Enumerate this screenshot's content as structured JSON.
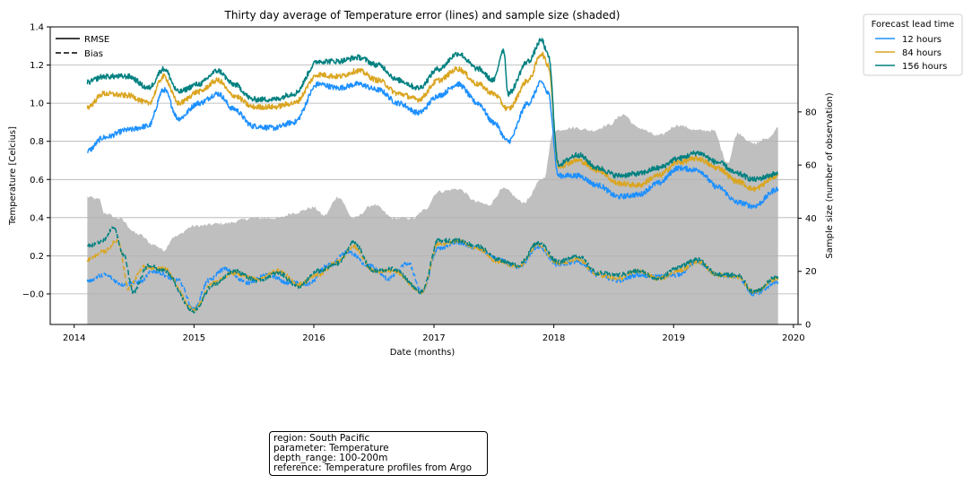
{
  "chart_data": {
    "type": "line",
    "title": "Thirty day average of Temperature error (lines) and sample size (shaded)",
    "xlabel": "Date (months)",
    "ylabel": "Temperature [Celcius]",
    "y2label": "Sample size (number of observation)",
    "xlim": [
      "2013-10-20",
      "2020-01-15"
    ],
    "ylim": [
      -0.16,
      1.4
    ],
    "y2lim": [
      0,
      112
    ],
    "x_ticks": [
      "2014",
      "2015",
      "2016",
      "2017",
      "2018",
      "2019",
      "2020"
    ],
    "y_ticks": [
      "−0.0",
      "0.2",
      "0.4",
      "0.6",
      "0.8",
      "1.0",
      "1.2",
      "1.4"
    ],
    "y_tick_values": [
      0.0,
      0.2,
      0.4,
      0.6,
      0.8,
      1.0,
      1.2,
      1.4
    ],
    "y2_ticks": [
      "0",
      "20",
      "40",
      "60",
      "80"
    ],
    "y2_tick_values": [
      0,
      20,
      40,
      60,
      80
    ],
    "grid": "horizontal",
    "style_legend": [
      {
        "label": "RMSE",
        "dash": "solid"
      },
      {
        "label": "Bias",
        "dash": "dashed"
      }
    ],
    "legend_title": "Forecast lead time",
    "series": [
      {
        "name": "12 hours",
        "color": "#1e90ff",
        "rmse": [
          [
            "2014-02-10",
            0.75
          ],
          [
            "2014-04-01",
            0.82
          ],
          [
            "2014-06-15",
            0.86
          ],
          [
            "2014-08-15",
            0.88
          ],
          [
            "2014-10-01",
            1.07
          ],
          [
            "2014-11-15",
            0.92
          ],
          [
            "2015-01-15",
            1.0
          ],
          [
            "2015-03-15",
            1.05
          ],
          [
            "2015-05-01",
            0.97
          ],
          [
            "2015-07-01",
            0.88
          ],
          [
            "2015-09-01",
            0.87
          ],
          [
            "2015-11-01",
            0.9
          ],
          [
            "2016-01-15",
            1.1
          ],
          [
            "2016-03-15",
            1.08
          ],
          [
            "2016-05-15",
            1.1
          ],
          [
            "2016-07-15",
            1.07
          ],
          [
            "2016-09-15",
            1.0
          ],
          [
            "2016-11-15",
            0.95
          ],
          [
            "2017-01-15",
            1.04
          ],
          [
            "2017-03-15",
            1.1
          ],
          [
            "2017-05-15",
            1.0
          ],
          [
            "2017-07-01",
            0.9
          ],
          [
            "2017-08-15",
            0.8
          ],
          [
            "2017-10-15",
            1.0
          ],
          [
            "2017-11-25",
            1.11
          ],
          [
            "2017-12-15",
            1.05
          ],
          [
            "2018-01-15",
            0.62
          ],
          [
            "2018-03-15",
            0.62
          ],
          [
            "2018-05-15",
            0.57
          ],
          [
            "2018-07-15",
            0.51
          ],
          [
            "2018-09-15",
            0.52
          ],
          [
            "2018-11-15",
            0.58
          ],
          [
            "2019-01-15",
            0.66
          ],
          [
            "2019-03-15",
            0.65
          ],
          [
            "2019-05-15",
            0.56
          ],
          [
            "2019-07-15",
            0.48
          ],
          [
            "2019-09-01",
            0.46
          ],
          [
            "2019-11-15",
            0.55
          ]
        ],
        "bias": [
          [
            "2014-02-10",
            0.07
          ],
          [
            "2014-04-01",
            0.1
          ],
          [
            "2014-06-01",
            0.05
          ],
          [
            "2014-07-15",
            0.06
          ],
          [
            "2014-09-01",
            0.12
          ],
          [
            "2014-11-15",
            0.07
          ],
          [
            "2015-01-01",
            -0.08
          ],
          [
            "2015-02-15",
            0.07
          ],
          [
            "2015-04-01",
            0.13
          ],
          [
            "2015-06-15",
            0.06
          ],
          [
            "2015-08-15",
            0.1
          ],
          [
            "2015-10-15",
            0.06
          ],
          [
            "2015-12-15",
            0.05
          ],
          [
            "2016-02-15",
            0.15
          ],
          [
            "2016-04-15",
            0.22
          ],
          [
            "2016-06-15",
            0.15
          ],
          [
            "2016-08-15",
            0.08
          ],
          [
            "2016-10-15",
            0.16
          ],
          [
            "2016-11-25",
            0.01
          ],
          [
            "2017-01-15",
            0.24
          ],
          [
            "2017-03-15",
            0.27
          ],
          [
            "2017-05-15",
            0.24
          ],
          [
            "2017-07-15",
            0.18
          ],
          [
            "2017-09-15",
            0.14
          ],
          [
            "2017-11-15",
            0.25
          ],
          [
            "2018-01-15",
            0.15
          ],
          [
            "2018-03-15",
            0.17
          ],
          [
            "2018-05-15",
            0.1
          ],
          [
            "2018-07-15",
            0.07
          ],
          [
            "2018-09-15",
            0.1
          ],
          [
            "2018-11-15",
            0.09
          ],
          [
            "2019-01-15",
            0.1
          ],
          [
            "2019-03-15",
            0.17
          ],
          [
            "2019-05-15",
            0.1
          ],
          [
            "2019-07-15",
            0.09
          ],
          [
            "2019-09-01",
            0.0
          ],
          [
            "2019-11-15",
            0.06
          ]
        ]
      },
      {
        "name": "84 hours",
        "color": "#daa520",
        "rmse": [
          [
            "2014-02-10",
            0.98
          ],
          [
            "2014-04-01",
            1.05
          ],
          [
            "2014-06-15",
            1.04
          ],
          [
            "2014-08-15",
            1.0
          ],
          [
            "2014-10-01",
            1.14
          ],
          [
            "2014-11-15",
            1.0
          ],
          [
            "2015-01-15",
            1.06
          ],
          [
            "2015-03-15",
            1.12
          ],
          [
            "2015-05-01",
            1.04
          ],
          [
            "2015-07-01",
            0.98
          ],
          [
            "2015-09-01",
            0.98
          ],
          [
            "2015-11-01",
            1.0
          ],
          [
            "2016-01-15",
            1.15
          ],
          [
            "2016-03-15",
            1.14
          ],
          [
            "2016-05-15",
            1.17
          ],
          [
            "2016-07-15",
            1.12
          ],
          [
            "2016-09-15",
            1.05
          ],
          [
            "2016-11-15",
            1.02
          ],
          [
            "2017-01-15",
            1.12
          ],
          [
            "2017-03-15",
            1.18
          ],
          [
            "2017-05-15",
            1.1
          ],
          [
            "2017-07-01",
            1.05
          ],
          [
            "2017-08-15",
            0.97
          ],
          [
            "2017-10-15",
            1.12
          ],
          [
            "2017-11-25",
            1.26
          ],
          [
            "2017-12-15",
            1.2
          ],
          [
            "2018-01-15",
            0.67
          ],
          [
            "2018-03-15",
            0.7
          ],
          [
            "2018-05-15",
            0.65
          ],
          [
            "2018-07-15",
            0.58
          ],
          [
            "2018-09-15",
            0.57
          ],
          [
            "2018-11-15",
            0.62
          ],
          [
            "2019-01-15",
            0.69
          ],
          [
            "2019-03-15",
            0.71
          ],
          [
            "2019-05-15",
            0.66
          ],
          [
            "2019-07-15",
            0.59
          ],
          [
            "2019-09-01",
            0.55
          ],
          [
            "2019-11-15",
            0.62
          ]
        ],
        "bias": [
          [
            "2014-02-10",
            0.18
          ],
          [
            "2014-04-01",
            0.22
          ],
          [
            "2014-05-15",
            0.28
          ],
          [
            "2014-06-15",
            0.03
          ],
          [
            "2014-08-01",
            0.14
          ],
          [
            "2014-10-01",
            0.13
          ],
          [
            "2015-01-01",
            -0.08
          ],
          [
            "2015-03-01",
            0.06
          ],
          [
            "2015-05-01",
            0.11
          ],
          [
            "2015-07-15",
            0.08
          ],
          [
            "2015-09-15",
            0.12
          ],
          [
            "2015-11-15",
            0.05
          ],
          [
            "2016-01-15",
            0.1
          ],
          [
            "2016-03-15",
            0.17
          ],
          [
            "2016-05-01",
            0.25
          ],
          [
            "2016-07-01",
            0.12
          ],
          [
            "2016-09-01",
            0.12
          ],
          [
            "2016-11-25",
            0.01
          ],
          [
            "2017-01-15",
            0.26
          ],
          [
            "2017-03-15",
            0.28
          ],
          [
            "2017-05-15",
            0.24
          ],
          [
            "2017-07-15",
            0.17
          ],
          [
            "2017-09-15",
            0.14
          ],
          [
            "2017-11-15",
            0.26
          ],
          [
            "2018-01-15",
            0.16
          ],
          [
            "2018-03-15",
            0.18
          ],
          [
            "2018-05-15",
            0.1
          ],
          [
            "2018-07-15",
            0.08
          ],
          [
            "2018-09-15",
            0.12
          ],
          [
            "2018-11-15",
            0.08
          ],
          [
            "2019-01-15",
            0.12
          ],
          [
            "2019-03-15",
            0.17
          ],
          [
            "2019-05-15",
            0.1
          ],
          [
            "2019-07-15",
            0.09
          ],
          [
            "2019-09-01",
            0.01
          ],
          [
            "2019-11-15",
            0.08
          ]
        ]
      },
      {
        "name": "156 hours",
        "color": "#008080",
        "rmse": [
          [
            "2014-02-10",
            1.11
          ],
          [
            "2014-04-01",
            1.14
          ],
          [
            "2014-06-15",
            1.14
          ],
          [
            "2014-08-15",
            1.08
          ],
          [
            "2014-10-01",
            1.18
          ],
          [
            "2014-11-15",
            1.06
          ],
          [
            "2015-01-15",
            1.1
          ],
          [
            "2015-03-15",
            1.17
          ],
          [
            "2015-05-01",
            1.1
          ],
          [
            "2015-07-01",
            1.02
          ],
          [
            "2015-09-01",
            1.02
          ],
          [
            "2015-11-01",
            1.05
          ],
          [
            "2016-01-15",
            1.22
          ],
          [
            "2016-03-15",
            1.22
          ],
          [
            "2016-05-15",
            1.24
          ],
          [
            "2016-07-15",
            1.2
          ],
          [
            "2016-09-15",
            1.12
          ],
          [
            "2016-11-15",
            1.08
          ],
          [
            "2017-01-15",
            1.18
          ],
          [
            "2017-03-15",
            1.26
          ],
          [
            "2017-05-15",
            1.18
          ],
          [
            "2017-07-01",
            1.12
          ],
          [
            "2017-08-01",
            1.28
          ],
          [
            "2017-08-15",
            1.05
          ],
          [
            "2017-10-15",
            1.22
          ],
          [
            "2017-11-25",
            1.33
          ],
          [
            "2017-12-15",
            1.25
          ],
          [
            "2018-01-15",
            0.68
          ],
          [
            "2018-03-15",
            0.73
          ],
          [
            "2018-05-15",
            0.66
          ],
          [
            "2018-07-15",
            0.62
          ],
          [
            "2018-09-15",
            0.63
          ],
          [
            "2018-11-15",
            0.66
          ],
          [
            "2019-01-15",
            0.71
          ],
          [
            "2019-03-15",
            0.74
          ],
          [
            "2019-05-15",
            0.69
          ],
          [
            "2019-07-15",
            0.63
          ],
          [
            "2019-09-01",
            0.6
          ],
          [
            "2019-11-15",
            0.63
          ]
        ],
        "bias": [
          [
            "2014-02-10",
            0.25
          ],
          [
            "2014-04-01",
            0.28
          ],
          [
            "2014-05-01",
            0.35
          ],
          [
            "2014-06-01",
            0.2
          ],
          [
            "2014-07-01",
            0.01
          ],
          [
            "2014-08-15",
            0.15
          ],
          [
            "2014-10-01",
            0.12
          ],
          [
            "2015-01-01",
            -0.09
          ],
          [
            "2015-03-01",
            0.05
          ],
          [
            "2015-05-01",
            0.12
          ],
          [
            "2015-07-15",
            0.07
          ],
          [
            "2015-09-15",
            0.11
          ],
          [
            "2015-11-15",
            0.04
          ],
          [
            "2016-01-15",
            0.12
          ],
          [
            "2016-03-15",
            0.16
          ],
          [
            "2016-05-01",
            0.27
          ],
          [
            "2016-07-01",
            0.12
          ],
          [
            "2016-09-01",
            0.13
          ],
          [
            "2016-11-25",
            0.01
          ],
          [
            "2017-01-15",
            0.28
          ],
          [
            "2017-03-15",
            0.28
          ],
          [
            "2017-05-15",
            0.25
          ],
          [
            "2017-07-15",
            0.18
          ],
          [
            "2017-09-15",
            0.15
          ],
          [
            "2017-11-15",
            0.27
          ],
          [
            "2018-01-15",
            0.17
          ],
          [
            "2018-03-15",
            0.2
          ],
          [
            "2018-05-15",
            0.11
          ],
          [
            "2018-07-15",
            0.1
          ],
          [
            "2018-09-15",
            0.12
          ],
          [
            "2018-11-15",
            0.08
          ],
          [
            "2019-01-15",
            0.14
          ],
          [
            "2019-03-15",
            0.18
          ],
          [
            "2019-05-15",
            0.1
          ],
          [
            "2019-07-15",
            0.1
          ],
          [
            "2019-09-01",
            0.01
          ],
          [
            "2019-11-15",
            0.09
          ]
        ]
      }
    ],
    "sample_size": {
      "color": "#bfbfbf",
      "points": [
        [
          "2014-02-10",
          48
        ],
        [
          "2014-03-20",
          47
        ],
        [
          "2014-04-01",
          42
        ],
        [
          "2014-05-15",
          40
        ],
        [
          "2014-07-15",
          34
        ],
        [
          "2014-09-01",
          30
        ],
        [
          "2014-10-01",
          28
        ],
        [
          "2014-11-01",
          33
        ],
        [
          "2015-01-01",
          37
        ],
        [
          "2015-04-01",
          38
        ],
        [
          "2015-07-01",
          40
        ],
        [
          "2015-09-15",
          40
        ],
        [
          "2015-11-01",
          42
        ],
        [
          "2016-01-01",
          44
        ],
        [
          "2016-02-01",
          41
        ],
        [
          "2016-03-15",
          48
        ],
        [
          "2016-05-01",
          40
        ],
        [
          "2016-07-01",
          45
        ],
        [
          "2016-09-01",
          40
        ],
        [
          "2016-11-01",
          40
        ],
        [
          "2016-12-01",
          43
        ],
        [
          "2017-01-15",
          50
        ],
        [
          "2017-03-15",
          51
        ],
        [
          "2017-05-15",
          46
        ],
        [
          "2017-06-15",
          45
        ],
        [
          "2017-08-01",
          51
        ],
        [
          "2017-10-01",
          46
        ],
        [
          "2017-12-01",
          55
        ],
        [
          "2018-01-01",
          73
        ],
        [
          "2018-03-01",
          74
        ],
        [
          "2018-05-01",
          73
        ],
        [
          "2018-06-15",
          75
        ],
        [
          "2018-08-01",
          79
        ],
        [
          "2018-09-15",
          74
        ],
        [
          "2018-11-15",
          71
        ],
        [
          "2019-01-15",
          75
        ],
        [
          "2019-03-15",
          73
        ],
        [
          "2019-05-01",
          73
        ],
        [
          "2019-06-15",
          61
        ],
        [
          "2019-07-15",
          72
        ],
        [
          "2019-09-01",
          68
        ],
        [
          "2019-10-15",
          70
        ],
        [
          "2019-11-15",
          74
        ]
      ]
    },
    "info_box": [
      "region: South Pacific",
      "parameter: Temperature",
      "depth_range: 100-200m",
      "reference: Temperature profiles from Argo"
    ]
  }
}
